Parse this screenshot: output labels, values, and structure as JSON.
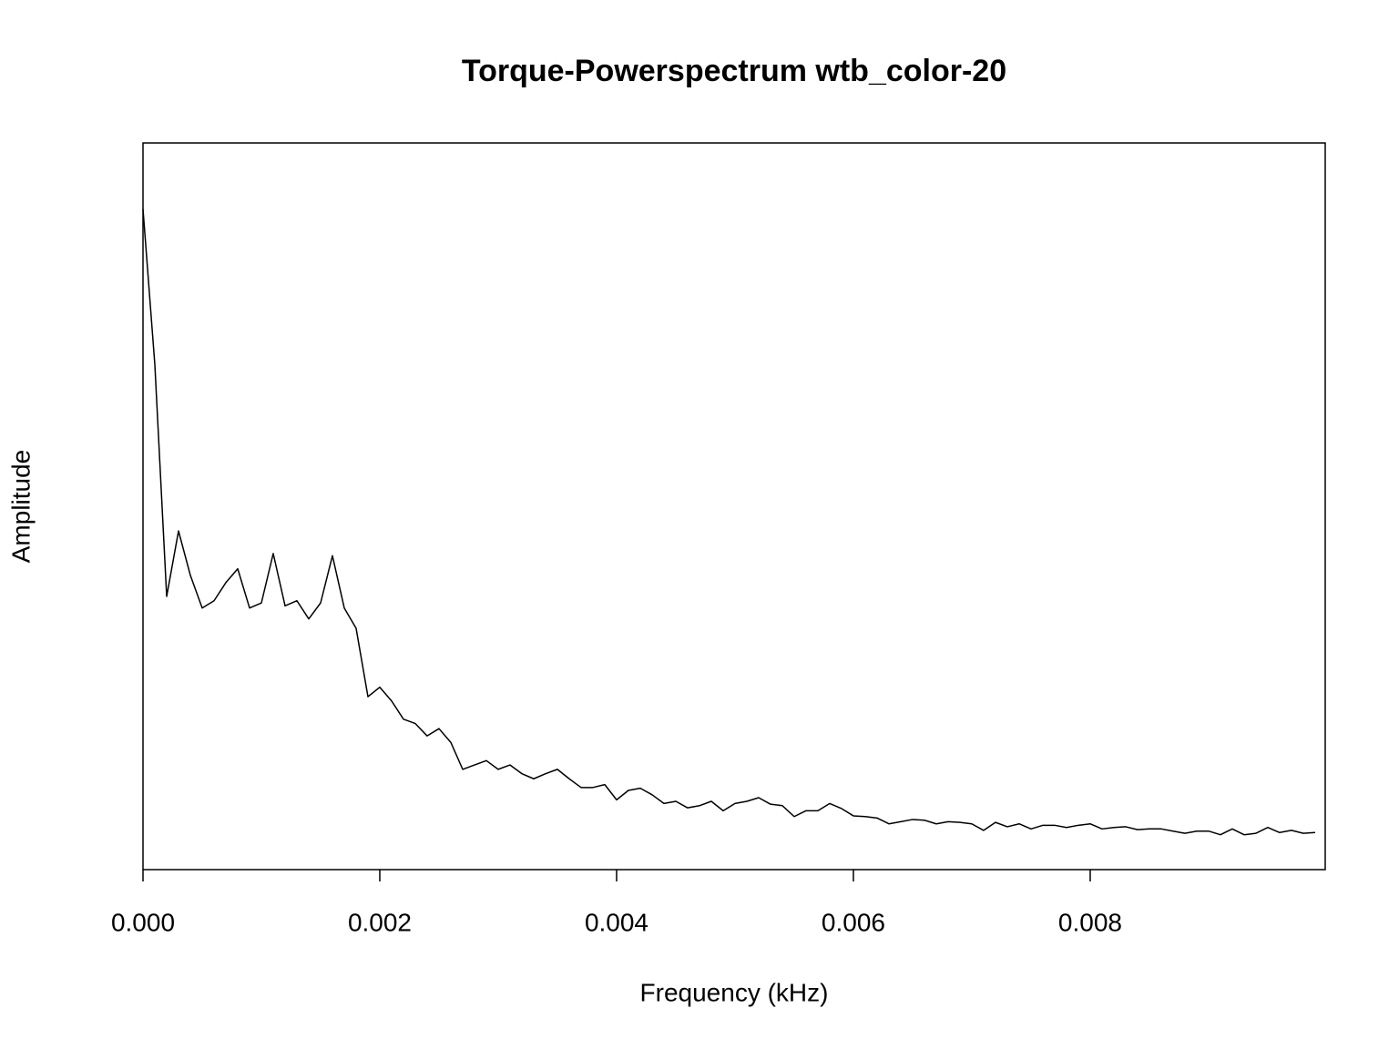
{
  "chart_data": {
    "type": "line",
    "title": "Torque-Powerspectrum wtb_color-20",
    "xlabel": "Frequency (kHz)",
    "ylabel": "Amplitude",
    "color": "#000000",
    "x": [
      0,
      0.0001,
      0.0002,
      0.0003,
      0.0004,
      0.0005,
      0.0006,
      0.0007,
      0.0008,
      0.0009,
      0.001,
      0.0011,
      0.0012,
      0.0013,
      0.0014,
      0.0015,
      0.0016,
      0.0017,
      0.0018,
      0.0019,
      0.002,
      0.0021,
      0.0022,
      0.0023,
      0.0024,
      0.0025,
      0.0026,
      0.0027,
      0.0028,
      0.0029,
      0.003,
      0.0031,
      0.0032,
      0.0033,
      0.0034,
      0.0035,
      0.0036,
      0.0037,
      0.0038,
      0.0039,
      0.004,
      0.0041,
      0.0042,
      0.0043,
      0.0044,
      0.0045,
      0.0046,
      0.0047,
      0.0048,
      0.0049,
      0.005,
      0.0051,
      0.0052,
      0.0053,
      0.0054,
      0.0055,
      0.0056,
      0.0057,
      0.0058,
      0.0059,
      0.006,
      0.0061,
      0.0062,
      0.0063,
      0.0064,
      0.0065,
      0.0066,
      0.0067,
      0.0068,
      0.0069,
      0.007,
      0.0071,
      0.0072,
      0.0073,
      0.0074,
      0.0075,
      0.0076,
      0.0077,
      0.0078,
      0.0079,
      0.008,
      0.0081,
      0.0082,
      0.0083,
      0.0084,
      0.0085,
      0.0086,
      0.0087,
      0.0088,
      0.0089,
      0.009,
      0.0091,
      0.0092,
      0.0093,
      0.0094,
      0.0095,
      0.0096,
      0.0097,
      0.0098,
      0.0099
    ],
    "values": [
      90.9,
      69.5,
      37.6,
      46.6,
      40.5,
      36.0,
      37.0,
      39.5,
      41.4,
      36.0,
      36.7,
      43.5,
      36.3,
      37.0,
      34.5,
      36.7,
      43.2,
      36.0,
      33.2,
      23.8,
      25.1,
      23.2,
      20.7,
      20.1,
      18.4,
      19.4,
      17.5,
      13.8,
      14.4,
      15.0,
      13.8,
      14.4,
      13.2,
      12.5,
      13.2,
      13.8,
      12.5,
      11.3,
      11.3,
      11.7,
      9.6,
      10.9,
      11.2,
      10.3,
      9.1,
      9.4,
      8.5,
      8.8,
      9.4,
      8.1,
      9.1,
      9.4,
      9.9,
      9.0,
      8.8,
      7.3,
      8.1,
      8.1,
      9.1,
      8.4,
      7.4,
      7.3,
      7.1,
      6.3,
      6.6,
      6.9,
      6.8,
      6.3,
      6.6,
      6.5,
      6.3,
      5.4,
      6.5,
      5.9,
      6.3,
      5.6,
      6.1,
      6.1,
      5.8,
      6.1,
      6.3,
      5.6,
      5.8,
      5.9,
      5.5,
      5.6,
      5.6,
      5.3,
      5.0,
      5.3,
      5.3,
      4.8,
      5.6,
      4.8,
      5.0,
      5.8,
      5.1,
      5.4,
      5.0,
      5.1
    ],
    "xlim": [
      0,
      0.009985
    ],
    "ylim": [
      0,
      100
    ],
    "xticks": [
      {
        "value": 0,
        "label": "0.000"
      },
      0.002,
      0.004,
      0.006,
      0.008
    ]
  }
}
